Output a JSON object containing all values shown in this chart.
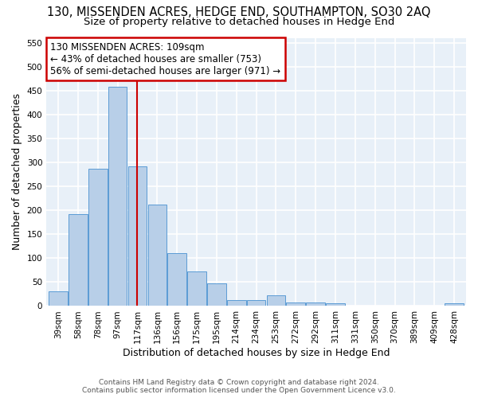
{
  "title1": "130, MISSENDEN ACRES, HEDGE END, SOUTHAMPTON, SO30 2AQ",
  "title2": "Size of property relative to detached houses in Hedge End",
  "xlabel": "Distribution of detached houses by size in Hedge End",
  "ylabel": "Number of detached properties",
  "categories": [
    "39sqm",
    "58sqm",
    "78sqm",
    "97sqm",
    "117sqm",
    "136sqm",
    "156sqm",
    "175sqm",
    "195sqm",
    "214sqm",
    "234sqm",
    "253sqm",
    "272sqm",
    "292sqm",
    "311sqm",
    "331sqm",
    "350sqm",
    "370sqm",
    "389sqm",
    "409sqm",
    "428sqm"
  ],
  "values": [
    30,
    192,
    287,
    457,
    292,
    212,
    110,
    73,
    47,
    13,
    13,
    22,
    7,
    8,
    5,
    0,
    0,
    0,
    0,
    0,
    5
  ],
  "bar_color": "#b8cfe8",
  "bar_edge_color": "#5b9bd5",
  "property_line_x": 4.0,
  "property_label": "130 MISSENDEN ACRES: 109sqm",
  "annotation_line1": "← 43% of detached houses are smaller (753)",
  "annotation_line2": "56% of semi-detached houses are larger (971) →",
  "annotation_box_color": "#ffffff",
  "annotation_box_edge": "#cc0000",
  "vline_color": "#cc0000",
  "ylim": [
    0,
    560
  ],
  "yticks": [
    0,
    50,
    100,
    150,
    200,
    250,
    300,
    350,
    400,
    450,
    500,
    550
  ],
  "footer1": "Contains HM Land Registry data © Crown copyright and database right 2024.",
  "footer2": "Contains public sector information licensed under the Open Government Licence v3.0.",
  "bg_color": "#e8f0f8",
  "grid_color": "#ffffff",
  "title1_fontsize": 10.5,
  "title2_fontsize": 9.5,
  "tick_fontsize": 7.5,
  "annotation_fontsize": 8.5
}
